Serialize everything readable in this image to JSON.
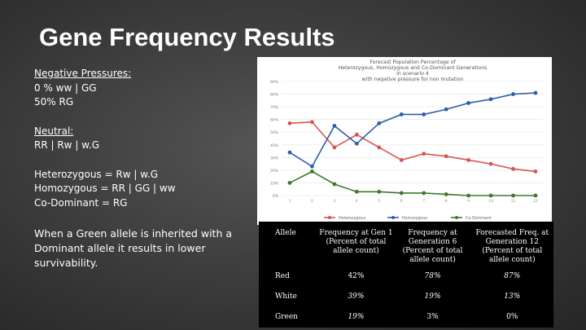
{
  "title": "Gene Frequency Results",
  "notes": {
    "negative_heading": "Negative Pressures:",
    "negative_line1": "0 % ww | GG",
    "negative_line2": "50% RG",
    "neutral_heading": "Neutral:",
    "neutral_line1": "RR | Rw | w.G",
    "hetero": "Heterozygous = Rw | w.G",
    "homo": "Homozygous = RR | GG | ww",
    "codom": "Co-Dominant = RG",
    "warning": "When a Green allele is inherited with a Dominant allele it results in lower survivability."
  },
  "chart_data": {
    "type": "line",
    "title_lines": [
      "Forecast Population Percentage of",
      "Heterozygous, Homozygous and Co-Dominant Generations",
      "in scenario 4",
      "with negative pressure for non mutation"
    ],
    "ylim": [
      0,
      90
    ],
    "y_ticks": [
      "0%",
      "10%",
      "20%",
      "30%",
      "40%",
      "50%",
      "60%",
      "70%",
      "80%",
      "90%"
    ],
    "categories": [
      "1",
      "2",
      "3",
      "4",
      "5",
      "6",
      "7",
      "8",
      "9",
      "10",
      "11",
      "12"
    ],
    "series": [
      {
        "name": "Heterozygous",
        "color": "#d9534f",
        "values": [
          57,
          58,
          38,
          48,
          38,
          28,
          33,
          31,
          28,
          25,
          21,
          19
        ]
      },
      {
        "name": "Homozygous",
        "color": "#2e5ea8",
        "values": [
          34,
          23,
          55,
          41,
          57,
          64,
          64,
          68,
          73,
          76,
          80,
          81
        ]
      },
      {
        "name": "Co-Dominant",
        "color": "#3d7a2e",
        "values": [
          10,
          19,
          9,
          3,
          3,
          2,
          2,
          1,
          0,
          0,
          0,
          0
        ]
      }
    ]
  },
  "table": {
    "headers": [
      "Allele",
      "Frequency at Gen 1 (Percent of total allele count)",
      "Frequency at Generation 6 (Percent of total allele count)",
      "Forecasted Freq. at Generation 12 (Percent of total allele count)"
    ],
    "rows": [
      [
        "Red",
        "42%",
        "78%",
        "87%"
      ],
      [
        "White",
        "39%",
        "19%",
        "13%"
      ],
      [
        "Green",
        "19%",
        "3%",
        "0%"
      ]
    ]
  }
}
